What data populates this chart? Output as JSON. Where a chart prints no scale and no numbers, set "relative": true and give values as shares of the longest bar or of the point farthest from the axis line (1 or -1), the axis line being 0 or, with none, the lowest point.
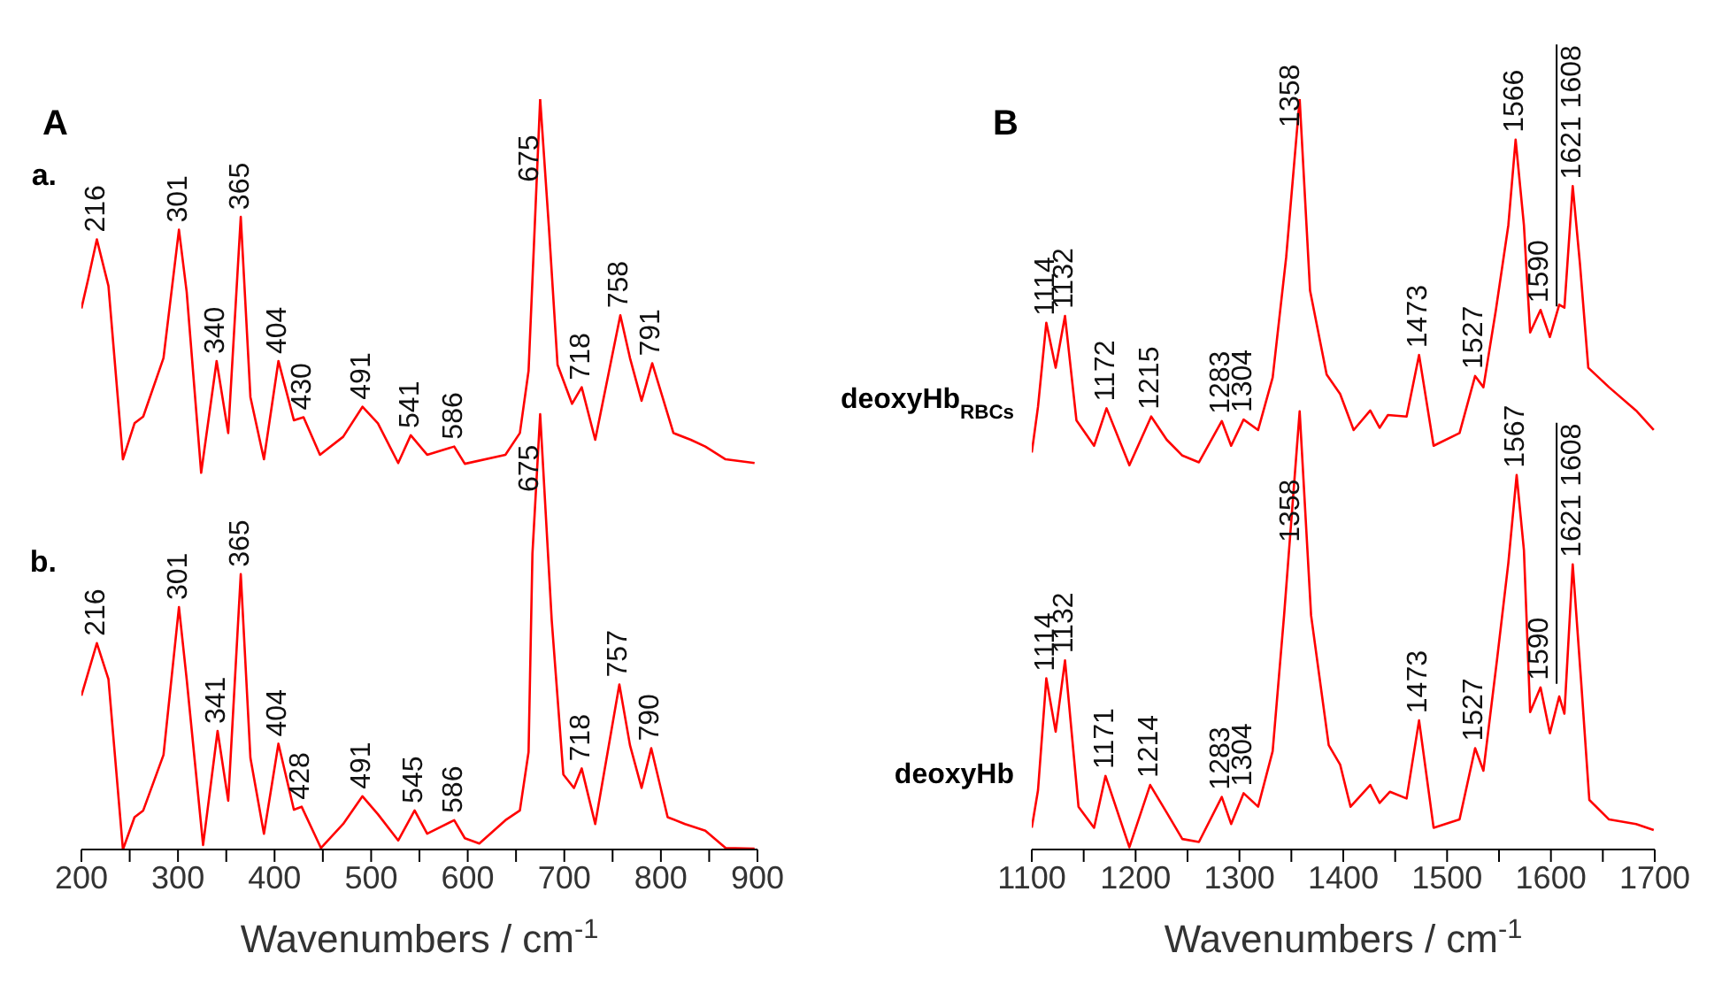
{
  "chart_data": [
    {
      "type": "line",
      "relative": true,
      "title": "A",
      "xlabel": "Wavenumbers / cm$^{-1}$",
      "xlim": [
        200,
        900
      ],
      "xticks": [
        200,
        {
          "value": 250,
          "label": null
        },
        300,
        {
          "value": 350,
          "label": null
        },
        400,
        {
          "value": 450,
          "label": null
        },
        500,
        {
          "value": 550,
          "label": null
        },
        600,
        {
          "value": 650,
          "label": null
        },
        700,
        {
          "value": 750,
          "label": null
        },
        800,
        {
          "value": 850,
          "label": null
        },
        900
      ],
      "series": [
        {
          "name": "a.",
          "color": "#ff0000",
          "x": [
            200,
            207,
            216,
            228,
            243,
            255,
            264,
            285,
            301,
            309,
            324,
            340,
            352,
            365,
            375,
            389,
            404,
            420,
            430,
            447,
            471,
            491,
            507,
            528,
            541,
            558,
            586,
            597,
            639,
            654,
            663,
            675,
            684,
            693,
            708,
            718,
            732,
            758,
            768,
            780,
            791,
            813,
            831,
            846,
            867,
            897
          ],
          "values": [
            0.721,
            0.76,
            0.813,
            0.751,
            0.52,
            0.568,
            0.577,
            0.655,
            0.826,
            0.743,
            0.502,
            0.651,
            0.555,
            0.843,
            0.603,
            0.52,
            0.651,
            0.572,
            0.576,
            0.526,
            0.55,
            0.59,
            0.568,
            0.515,
            0.552,
            0.526,
            0.537,
            0.514,
            0.526,
            0.555,
            0.638,
            1.0,
            0.83,
            0.646,
            0.594,
            0.616,
            0.546,
            0.712,
            0.655,
            0.598,
            0.648,
            0.555,
            0.546,
            0.537,
            0.52,
            0.515
          ]
        },
        {
          "name": "b.",
          "color": "#ff0000",
          "x": [
            200,
            216,
            228,
            243,
            255,
            264,
            285,
            301,
            309,
            326,
            341,
            352,
            365,
            375,
            389,
            404,
            420,
            428,
            448,
            471,
            491,
            507,
            528,
            545,
            558,
            586,
            597,
            612,
            639,
            654,
            663,
            667,
            675,
            687,
            699,
            710,
            718,
            732,
            757,
            768,
            780,
            790,
            807,
            825,
            846,
            867,
            897
          ],
          "values": [
            0.205,
            0.275,
            0.227,
            0.0,
            0.043,
            0.052,
            0.126,
            0.323,
            0.227,
            0.006,
            0.158,
            0.065,
            0.367,
            0.122,
            0.021,
            0.141,
            0.053,
            0.057,
            0.002,
            0.034,
            0.071,
            0.047,
            0.012,
            0.052,
            0.021,
            0.039,
            0.015,
            0.008,
            0.039,
            0.052,
            0.13,
            0.394,
            0.58,
            0.305,
            0.1,
            0.082,
            0.108,
            0.034,
            0.22,
            0.139,
            0.082,
            0.135,
            0.043,
            0.034,
            0.025,
            0.002,
            0.001
          ]
        }
      ],
      "annotations": [
        {
          "text": "216",
          "x": 216,
          "y": 0.813
        },
        {
          "text": "301",
          "x": 301,
          "y": 0.826
        },
        {
          "text": "340",
          "x": 340,
          "y": 0.651
        },
        {
          "text": "365",
          "x": 365,
          "y": 0.843
        },
        {
          "text": "404",
          "x": 404,
          "y": 0.651
        },
        {
          "text": "430",
          "x": 430,
          "y": 0.576
        },
        {
          "text": "491",
          "x": 491,
          "y": 0.59
        },
        {
          "text": "541",
          "x": 541,
          "y": 0.552
        },
        {
          "text": "586",
          "x": 586,
          "y": 0.537
        },
        {
          "text": "675",
          "x": 665,
          "y": 0.88
        },
        {
          "text": "718",
          "x": 718,
          "y": 0.616
        },
        {
          "text": "758",
          "x": 758,
          "y": 0.712
        },
        {
          "text": "791",
          "x": 791,
          "y": 0.648
        },
        {
          "text": "216",
          "x": 216,
          "y": 0.275
        },
        {
          "text": "301",
          "x": 301,
          "y": 0.323
        },
        {
          "text": "341",
          "x": 341,
          "y": 0.158
        },
        {
          "text": "365",
          "x": 365,
          "y": 0.367
        },
        {
          "text": "404",
          "x": 404,
          "y": 0.141
        },
        {
          "text": "428",
          "x": 428,
          "y": 0.057
        },
        {
          "text": "491",
          "x": 491,
          "y": 0.071
        },
        {
          "text": "545",
          "x": 545,
          "y": 0.052
        },
        {
          "text": "586",
          "x": 586,
          "y": 0.039
        },
        {
          "text": "675",
          "x": 665,
          "y": 0.467
        },
        {
          "text": "718",
          "x": 718,
          "y": 0.108
        },
        {
          "text": "757",
          "x": 757,
          "y": 0.22
        },
        {
          "text": "790",
          "x": 790,
          "y": 0.135
        }
      ]
    },
    {
      "type": "line",
      "relative": true,
      "title": "B",
      "xlabel": "Wavenumbers / cm$^{-1}$",
      "xlim": [
        1100,
        1700
      ],
      "xticks": [
        1100,
        {
          "value": 1150,
          "label": null
        },
        1200,
        {
          "value": 1250,
          "label": null
        },
        1300,
        {
          "value": 1350,
          "label": null
        },
        1400,
        {
          "value": 1450,
          "label": null
        },
        1500,
        {
          "value": 1550,
          "label": null
        },
        1600,
        {
          "value": 1650,
          "label": null
        },
        1700
      ],
      "series": [
        {
          "name": "deoxyHb$_{RBCs}$",
          "color": "#ff0000",
          "x": [
            1100,
            1106,
            1114,
            1123,
            1132,
            1143,
            1160,
            1172,
            1194,
            1215,
            1230,
            1245,
            1261,
            1283,
            1292,
            1304,
            1318,
            1332,
            1345,
            1358,
            1368,
            1384,
            1397,
            1410,
            1426,
            1435,
            1443,
            1461,
            1473,
            1487,
            1512,
            1527,
            1535,
            1547,
            1559,
            1566,
            1574,
            1580,
            1590,
            1599,
            1608,
            1613,
            1621,
            1628,
            1636,
            1656,
            1682,
            1699
          ],
          "values": [
            0.529,
            0.59,
            0.702,
            0.642,
            0.711,
            0.572,
            0.538,
            0.588,
            0.512,
            0.577,
            0.546,
            0.525,
            0.516,
            0.571,
            0.538,
            0.573,
            0.559,
            0.629,
            0.789,
            1.0,
            0.745,
            0.633,
            0.607,
            0.559,
            0.585,
            0.562,
            0.579,
            0.577,
            0.659,
            0.538,
            0.555,
            0.631,
            0.616,
            0.719,
            0.832,
            0.946,
            0.832,
            0.689,
            0.719,
            0.683,
            0.726,
            0.722,
            0.884,
            0.78,
            0.642,
            0.616,
            0.585,
            0.559
          ]
        },
        {
          "name": "deoxyHb",
          "color": "#ff0000",
          "x": [
            1100,
            1106,
            1114,
            1123,
            1132,
            1145,
            1160,
            1171,
            1194,
            1214,
            1230,
            1245,
            1261,
            1283,
            1292,
            1304,
            1318,
            1332,
            1343,
            1358,
            1369,
            1386,
            1397,
            1407,
            1426,
            1435,
            1445,
            1461,
            1473,
            1487,
            1512,
            1527,
            1535,
            1548,
            1559,
            1567,
            1574,
            1580,
            1590,
            1599,
            1608,
            1613,
            1621,
            1629,
            1637,
            1656,
            1682,
            1699
          ],
          "values": [
            0.029,
            0.079,
            0.228,
            0.157,
            0.252,
            0.057,
            0.029,
            0.098,
            0.003,
            0.086,
            0.049,
            0.014,
            0.01,
            0.07,
            0.034,
            0.075,
            0.057,
            0.131,
            0.312,
            0.584,
            0.312,
            0.139,
            0.113,
            0.057,
            0.086,
            0.062,
            0.077,
            0.068,
            0.172,
            0.029,
            0.04,
            0.135,
            0.105,
            0.252,
            0.382,
            0.499,
            0.399,
            0.183,
            0.216,
            0.155,
            0.204,
            0.181,
            0.38,
            0.226,
            0.066,
            0.04,
            0.034,
            0.026
          ]
        }
      ],
      "annotations": [
        {
          "text": "1114",
          "x": 1114,
          "y": 0.702
        },
        {
          "text": "1132",
          "x": 1132,
          "y": 0.711
        },
        {
          "text": "1172",
          "x": 1172,
          "y": 0.588
        },
        {
          "text": "1215",
          "x": 1215,
          "y": 0.577
        },
        {
          "text": "1283",
          "x": 1283,
          "y": 0.571
        },
        {
          "text": "1304",
          "x": 1304,
          "y": 0.573
        },
        {
          "text": "1358",
          "x": 1350,
          "y": 0.953
        },
        {
          "text": "1473",
          "x": 1473,
          "y": 0.659
        },
        {
          "text": "1527",
          "x": 1527,
          "y": 0.631
        },
        {
          "text": "1566",
          "x": 1566,
          "y": 0.946
        },
        {
          "text": "1590",
          "x": 1590,
          "y": 0.719
        },
        "1608",
        {
          "text": "1621",
          "x": 1621,
          "y": 0.884
        },
        {
          "text": "1114",
          "x": 1114,
          "y": 0.228
        },
        {
          "text": "1132",
          "x": 1132,
          "y": 0.252
        },
        {
          "text": "1171",
          "x": 1171,
          "y": 0.098
        },
        {
          "text": "1214",
          "x": 1214,
          "y": 0.086
        },
        {
          "text": "1283",
          "x": 1283,
          "y": 0.07
        },
        {
          "text": "1304",
          "x": 1304,
          "y": 0.075
        },
        {
          "text": "1358",
          "x": 1350,
          "y": 0.4
        },
        {
          "text": "1473",
          "x": 1473,
          "y": 0.172
        },
        {
          "text": "1527",
          "x": 1527,
          "y": 0.135
        },
        {
          "text": "1567",
          "x": 1567,
          "y": 0.499
        },
        {
          "text": "1590",
          "x": 1590,
          "y": 0.216
        },
        "1608",
        {
          "text": "1621",
          "x": 1621,
          "y": 0.38
        }
      ]
    }
  ]
}
